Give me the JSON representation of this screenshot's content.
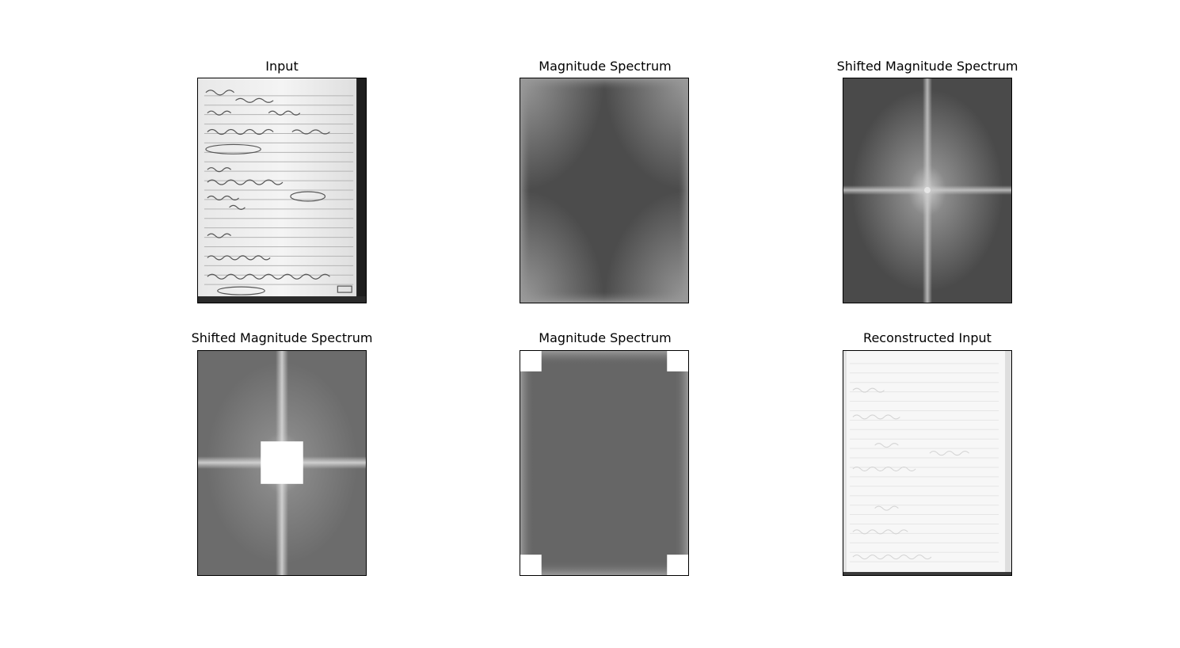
{
  "figure": {
    "panels": [
      {
        "title": "Input"
      },
      {
        "title": "Magnitude Spectrum"
      },
      {
        "title": "Shifted Magnitude Spectrum"
      },
      {
        "title": "Shifted Magnitude Spectrum"
      },
      {
        "title": "Magnitude Spectrum"
      },
      {
        "title": "Reconstructed Input"
      }
    ]
  }
}
